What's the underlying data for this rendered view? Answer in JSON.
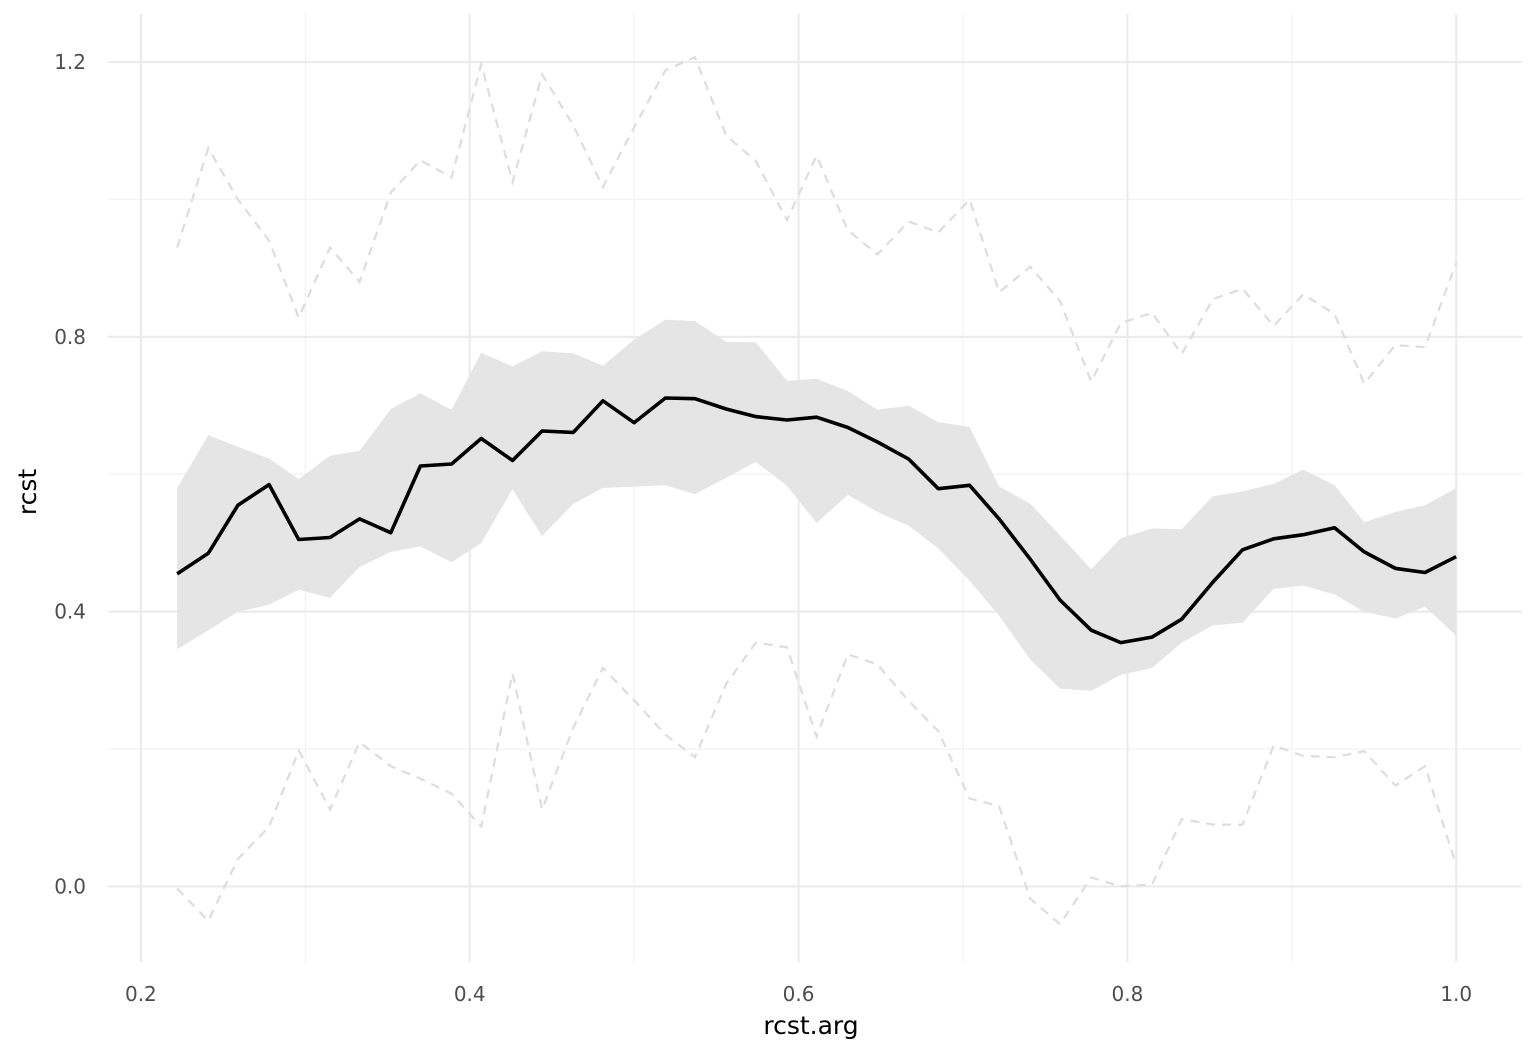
{
  "chart_data": {
    "type": "line",
    "title": "",
    "xlabel": "rcst.arg",
    "ylabel": "rcst",
    "xlim": [
      0.18,
      1.04
    ],
    "ylim": [
      -0.11,
      1.27
    ],
    "x_ticks": [
      0.2,
      0.4,
      0.6,
      0.8,
      1.0
    ],
    "x_tick_labels": [
      "0.2",
      "0.4",
      "0.6",
      "0.8",
      "1.0"
    ],
    "y_ticks": [
      0.0,
      0.4,
      0.8,
      1.2
    ],
    "y_tick_labels": [
      "0.0",
      "0.4",
      "0.8",
      "1.2"
    ],
    "grid": true,
    "legend": "none",
    "colors": {
      "line": "#000000",
      "band": "#e5e5e5",
      "envelope": "#dddddd",
      "grid_major": "#ebebeb",
      "grid_minor": "#f3f3f3"
    },
    "x": [
      0.222,
      0.241,
      0.259,
      0.278,
      0.296,
      0.315,
      0.333,
      0.352,
      0.37,
      0.389,
      0.407,
      0.426,
      0.444,
      0.463,
      0.481,
      0.5,
      0.519,
      0.537,
      0.556,
      0.574,
      0.593,
      0.611,
      0.63,
      0.648,
      0.667,
      0.685,
      0.704,
      0.722,
      0.741,
      0.759,
      0.778,
      0.796,
      0.815,
      0.833,
      0.852,
      0.87,
      0.889,
      0.907,
      0.926,
      0.944,
      0.963,
      0.981,
      1.0
    ],
    "series": [
      {
        "role": "mean",
        "style": "solid",
        "values": [
          0.455,
          0.485,
          0.555,
          0.585,
          0.505,
          0.508,
          0.535,
          0.515,
          0.612,
          0.615,
          0.652,
          0.62,
          0.663,
          0.661,
          0.707,
          0.675,
          0.711,
          0.71,
          0.695,
          0.684,
          0.679,
          0.683,
          0.668,
          0.647,
          0.622,
          0.579,
          0.584,
          0.535,
          0.476,
          0.417,
          0.373,
          0.355,
          0.363,
          0.389,
          0.443,
          0.49,
          0.506,
          0.512,
          0.522,
          0.487,
          0.463,
          0.457,
          0.48
        ]
      },
      {
        "role": "band-upper",
        "style": "fill",
        "values": [
          0.58,
          0.657,
          0.64,
          0.623,
          0.593,
          0.627,
          0.634,
          0.695,
          0.718,
          0.694,
          0.777,
          0.757,
          0.779,
          0.776,
          0.758,
          0.796,
          0.825,
          0.823,
          0.793,
          0.792,
          0.736,
          0.739,
          0.721,
          0.694,
          0.7,
          0.676,
          0.669,
          0.582,
          0.557,
          0.511,
          0.462,
          0.507,
          0.521,
          0.52,
          0.568,
          0.575,
          0.586,
          0.607,
          0.584,
          0.53,
          0.545,
          0.555,
          0.58
        ]
      },
      {
        "role": "band-lower",
        "style": "fill",
        "values": [
          0.345,
          0.373,
          0.4,
          0.41,
          0.432,
          0.42,
          0.465,
          0.487,
          0.495,
          0.472,
          0.5,
          0.578,
          0.51,
          0.557,
          0.58,
          0.582,
          0.584,
          0.571,
          0.595,
          0.618,
          0.583,
          0.529,
          0.57,
          0.545,
          0.525,
          0.492,
          0.445,
          0.394,
          0.33,
          0.288,
          0.285,
          0.308,
          0.318,
          0.355,
          0.38,
          0.384,
          0.433,
          0.438,
          0.425,
          0.4,
          0.39,
          0.407,
          0.365
        ]
      },
      {
        "role": "envelope-upper",
        "style": "dashed",
        "values": [
          0.93,
          1.075,
          1.0,
          0.94,
          0.828,
          0.93,
          0.88,
          1.01,
          1.057,
          1.032,
          1.197,
          1.025,
          1.182,
          1.108,
          1.018,
          1.105,
          1.188,
          1.207,
          1.093,
          1.056,
          0.97,
          1.064,
          0.955,
          0.92,
          0.968,
          0.952,
          1.0,
          0.865,
          0.902,
          0.852,
          0.735,
          0.82,
          0.835,
          0.775,
          0.855,
          0.87,
          0.816,
          0.862,
          0.833,
          0.732,
          0.788,
          0.785,
          0.908
        ]
      },
      {
        "role": "envelope-lower",
        "style": "dashed",
        "values": [
          -0.003,
          -0.05,
          0.04,
          0.087,
          0.198,
          0.112,
          0.21,
          0.175,
          0.157,
          0.135,
          0.087,
          0.31,
          0.112,
          0.231,
          0.318,
          0.271,
          0.221,
          0.188,
          0.295,
          0.355,
          0.348,
          0.218,
          0.338,
          0.323,
          0.27,
          0.226,
          0.128,
          0.117,
          -0.018,
          -0.055,
          0.013,
          0.0,
          0.003,
          0.098,
          0.09,
          0.09,
          0.205,
          0.19,
          0.188,
          0.197,
          0.147,
          0.175,
          0.03
        ]
      }
    ]
  }
}
